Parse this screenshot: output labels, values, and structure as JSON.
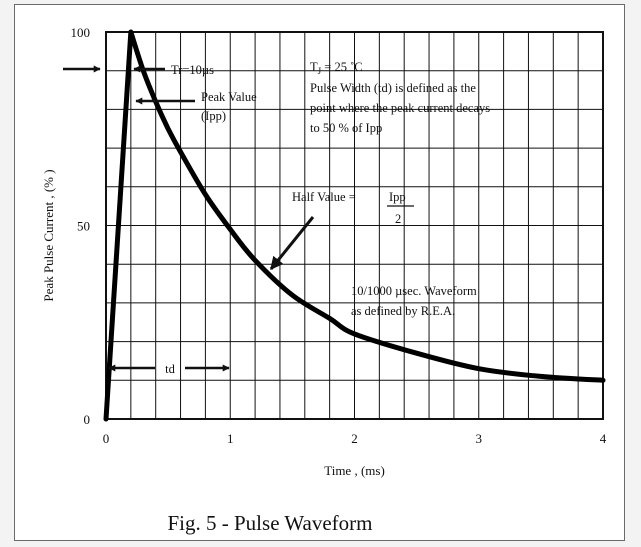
{
  "chart_data": {
    "type": "line",
    "title": "",
    "caption": "Fig. 5 - Pulse Waveform",
    "xlabel": "Time , (ms)",
    "ylabel": "Peak Pulse Current , (% )",
    "xlim": [
      0,
      4
    ],
    "ylim": [
      0,
      100
    ],
    "x_ticks": [
      "0",
      "1",
      "2",
      "3",
      "4"
    ],
    "y_ticks": [
      "0",
      "50",
      "100"
    ],
    "grid": true,
    "series": [
      {
        "x": [
          0,
          0.2,
          0.3,
          0.4,
          0.5,
          0.6,
          0.8,
          1.0,
          1.2,
          1.5,
          1.8,
          2.0,
          2.5,
          3.0,
          3.5,
          4.0
        ],
        "y": [
          0,
          100,
          90,
          82,
          75,
          69,
          58,
          49,
          41,
          32,
          26,
          22,
          17,
          13,
          11,
          10
        ]
      }
    ],
    "annotations": {
      "tr_label": "Tr=10µs",
      "peak_label_1": "Peak Value",
      "peak_label_2": "(Ipp)",
      "tj_label_T": "T",
      "tj_label_sub": "J",
      "tj_label_rest": " = 25 ˚C",
      "pw_line_1": "Pulse Width (td) is defined as the",
      "pw_line_2": "point where the peak current decays",
      "pw_line_3": "to 50 % of Ipp",
      "half_label": "Half Value =",
      "half_num": "Ipp",
      "half_den": "2",
      "wave_line_1": "10/1000 µsec. Waveform",
      "wave_line_2": "as defined by R.E.A.",
      "td_label": "td"
    }
  }
}
